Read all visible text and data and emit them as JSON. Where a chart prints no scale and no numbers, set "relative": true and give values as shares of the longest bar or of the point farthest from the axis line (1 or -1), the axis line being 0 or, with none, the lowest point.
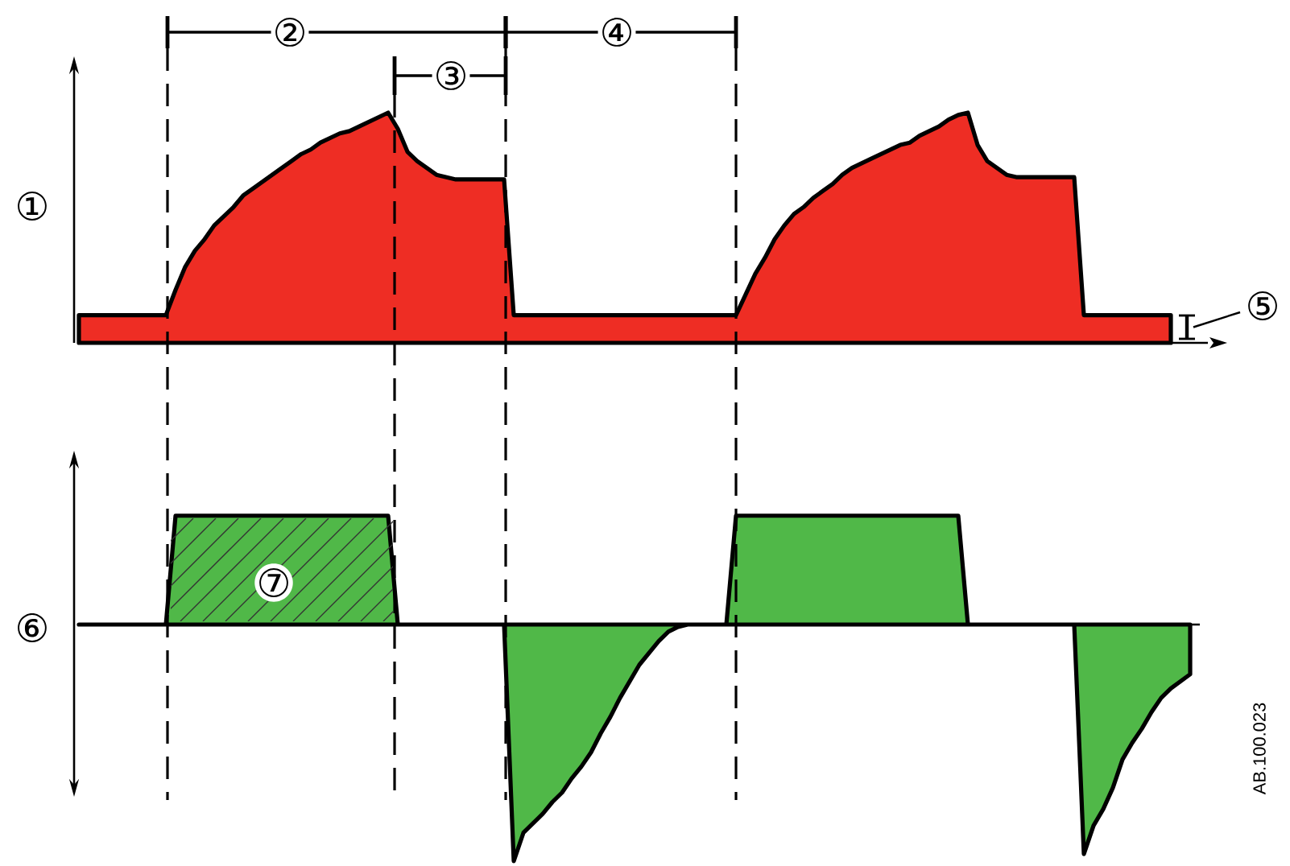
{
  "chart_data": [
    {
      "type": "area",
      "relative": true,
      "ylabel": "①",
      "categories": [
        null,
        null,
        null,
        null,
        null,
        null,
        null,
        null,
        null,
        null,
        null,
        null,
        null,
        null,
        null,
        null,
        null,
        null,
        null,
        null,
        null,
        null,
        null,
        null,
        null,
        null,
        null,
        null,
        null,
        null,
        null,
        null,
        null,
        null,
        null,
        null,
        null,
        null,
        null,
        null,
        null,
        null,
        null,
        null,
        null,
        null,
        null,
        null,
        null,
        null,
        null,
        null,
        null,
        null,
        null,
        null,
        null,
        null,
        null,
        null,
        null,
        null,
        null,
        null,
        null,
        null,
        null,
        null,
        null,
        null,
        null,
        null,
        null,
        null,
        null,
        null,
        null,
        null,
        null,
        null,
        null,
        null,
        null,
        null,
        null,
        null,
        null,
        null,
        null,
        null,
        null,
        null,
        null,
        null,
        null,
        null,
        null,
        null,
        null,
        null,
        null,
        null,
        null,
        null,
        null,
        null,
        null,
        null,
        null,
        null,
        null,
        null,
        null,
        null,
        null,
        null
      ],
      "color": "#ee2d24",
      "values": [
        0.12,
        0.12,
        0.12,
        0.12,
        0.12,
        0.12,
        0.12,
        0.12,
        0.12,
        0.12,
        0.23,
        0.33,
        0.4,
        0.45,
        0.51,
        0.55,
        0.59,
        0.64,
        0.67,
        0.7,
        0.73,
        0.76,
        0.79,
        0.82,
        0.84,
        0.87,
        0.89,
        0.91,
        0.92,
        0.94,
        0.96,
        0.98,
        1,
        0.93,
        0.83,
        0.79,
        0.76,
        0.73,
        0.72,
        0.71,
        0.71,
        0.71,
        0.71,
        0.71,
        0.71,
        0.12,
        0.12,
        0.12,
        0.12,
        0.12,
        0.12,
        0.12,
        0.12,
        0.12,
        0.12,
        0.12,
        0.12,
        0.12,
        0.12,
        0.12,
        0.12,
        0.12,
        0.12,
        0.12,
        0.12,
        0.12,
        0.12,
        0.12,
        0.12,
        0.21,
        0.3,
        0.37,
        0.45,
        0.51,
        0.56,
        0.59,
        0.63,
        0.66,
        0.69,
        0.73,
        0.76,
        0.78,
        0.8,
        0.82,
        0.84,
        0.86,
        0.87,
        0.9,
        0.92,
        0.94,
        0.97,
        0.99,
        1,
        0.86,
        0.79,
        0.76,
        0.73,
        0.72,
        0.72,
        0.72,
        0.72,
        0.72,
        0.72,
        0.72,
        0.12,
        0.12,
        0.12,
        0.12,
        0.12,
        0.12,
        0.12,
        0.12,
        0.12,
        0.12,
        null,
        null
      ],
      "annotations": [
        "②",
        "③",
        "④",
        "⑤"
      ]
    },
    {
      "type": "area",
      "relative": true,
      "ylabel": "⑥",
      "categories": [
        null,
        null,
        null,
        null,
        null,
        null,
        null,
        null,
        null,
        null,
        null,
        null,
        null,
        null,
        null,
        null,
        null,
        null,
        null,
        null,
        null,
        null,
        null,
        null,
        null,
        null,
        null,
        null,
        null,
        null,
        null,
        null,
        null,
        null,
        null,
        null,
        null,
        null,
        null,
        null,
        null,
        null,
        null,
        null,
        null,
        null,
        null,
        null,
        null,
        null,
        null,
        null,
        null,
        null,
        null,
        null,
        null,
        null,
        null,
        null,
        null,
        null,
        null,
        null,
        null,
        null,
        null,
        null,
        null,
        null,
        null,
        null,
        null,
        null,
        null,
        null,
        null,
        null,
        null,
        null,
        null,
        null,
        null,
        null,
        null,
        null,
        null,
        null,
        null,
        null,
        null,
        null,
        null,
        null,
        null,
        null,
        null,
        null,
        null,
        null,
        null,
        null,
        null,
        null,
        null,
        null,
        null,
        null,
        null,
        null,
        null,
        null,
        null,
        null,
        null,
        null
      ],
      "color": "#50b848",
      "values": [
        0,
        0,
        0,
        0,
        0,
        0,
        0,
        0,
        0,
        0,
        0.46,
        0.46,
        0.46,
        0.46,
        0.46,
        0.46,
        0.46,
        0.46,
        0.46,
        0.46,
        0.46,
        0.46,
        0.46,
        0.46,
        0.46,
        0.46,
        0.46,
        0.46,
        0.46,
        0.46,
        0.46,
        0.46,
        0.46,
        0,
        0,
        0,
        0,
        0,
        0,
        0,
        0,
        0,
        0,
        0,
        0,
        -1,
        -0.88,
        -0.84,
        -0.8,
        -0.75,
        -0.71,
        -0.65,
        -0.6,
        -0.54,
        -0.46,
        -0.39,
        -0.31,
        -0.24,
        -0.17,
        -0.12,
        -0.07,
        -0.03,
        -0.01,
        0,
        0,
        0,
        0,
        0,
        0.46,
        0.46,
        0.46,
        0.46,
        0.46,
        0.46,
        0.46,
        0.46,
        0.46,
        0.46,
        0.46,
        0.46,
        0.46,
        0.46,
        0.46,
        0.46,
        0.46,
        0.46,
        0.46,
        0.46,
        0.46,
        0.46,
        0.46,
        0.46,
        0,
        0,
        0,
        0,
        0,
        0,
        0,
        0,
        0,
        0,
        0,
        0,
        -0.97,
        -0.85,
        -0.78,
        -0.69,
        -0.57,
        -0.5,
        -0.44,
        -0.37,
        -0.31,
        -0.27,
        -0.24,
        -0.21
      ],
      "annotations": [
        "⑦",
        "AB.100.023"
      ]
    }
  ]
}
